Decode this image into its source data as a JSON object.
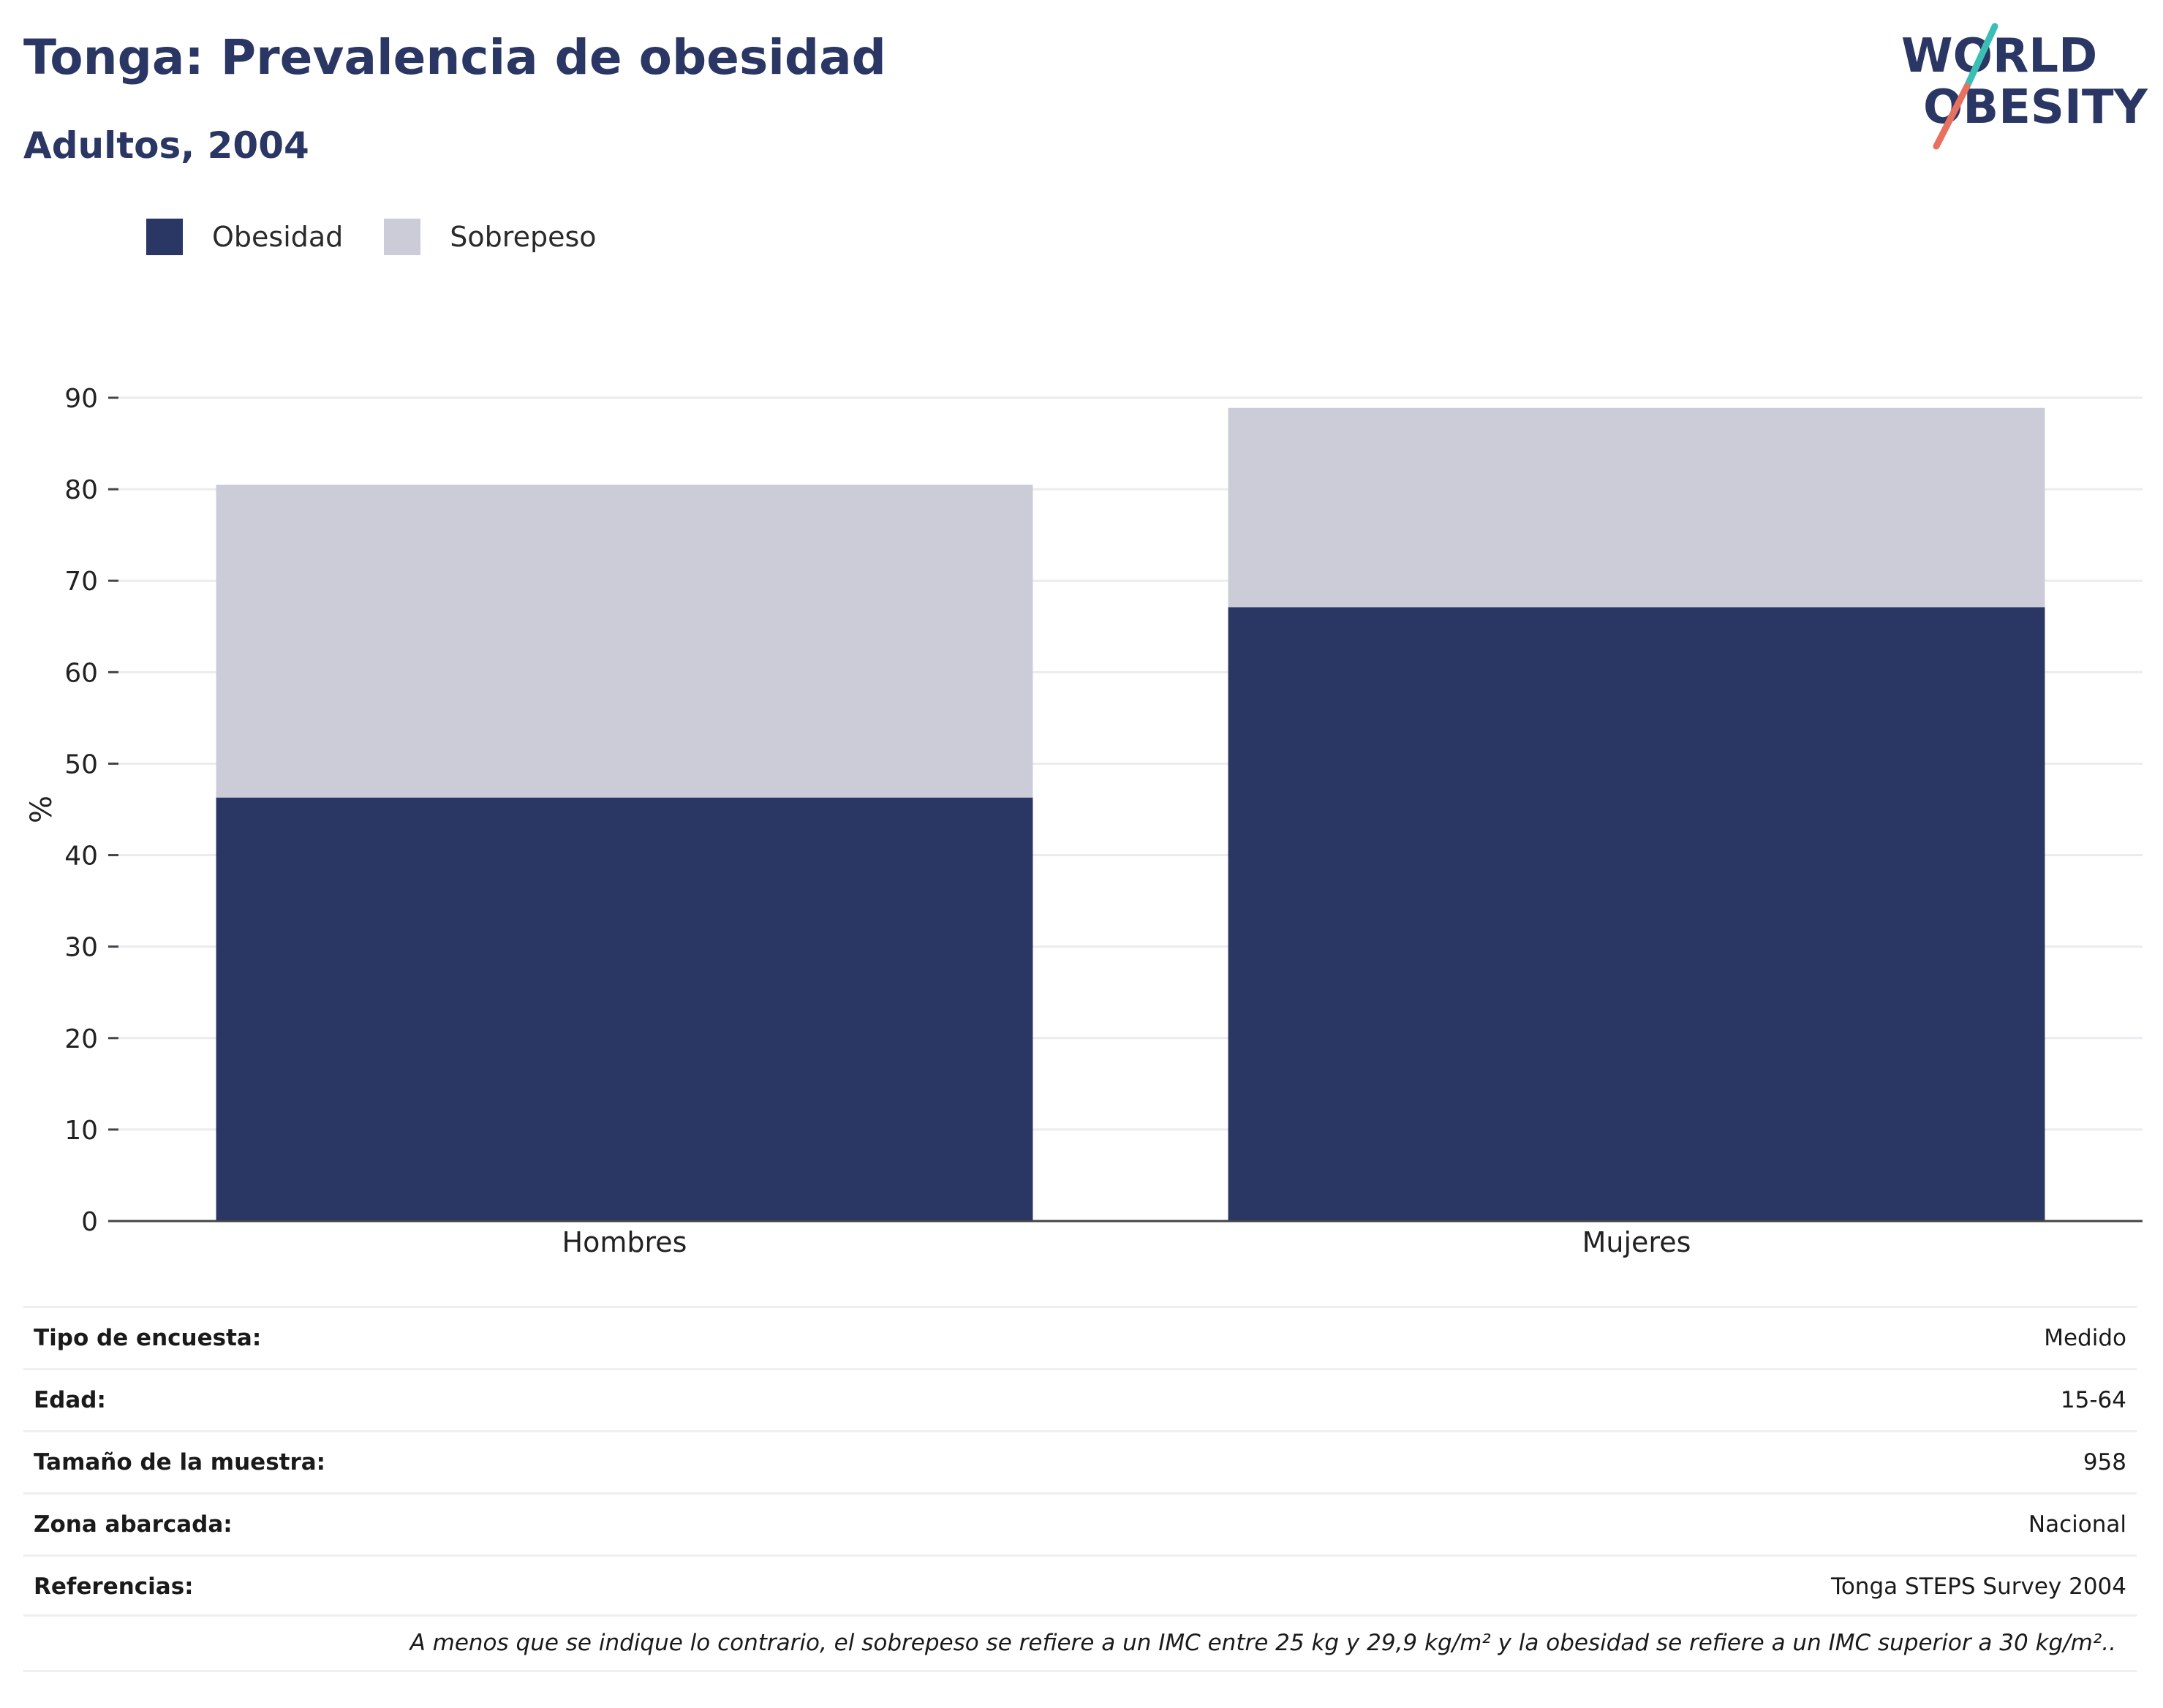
{
  "header": {
    "title": "Tonga: Prevalencia de obesidad",
    "subtitle": "Adultos, 2004"
  },
  "logo": {
    "line1": "WORLD",
    "line2": "OBESITY",
    "colors": {
      "text": "#2a3663",
      "slash_top": "#3bbfb5",
      "slash_bottom": "#e8705f"
    }
  },
  "legend": [
    {
      "label": "Obesidad",
      "color": "#2a3663"
    },
    {
      "label": "Sobrepeso",
      "color": "#cbccd7"
    }
  ],
  "chart_data": {
    "type": "bar",
    "stacked": true,
    "categories": [
      "Hombres",
      "Mujeres"
    ],
    "series": [
      {
        "name": "Obesidad",
        "color": "#2a3663",
        "values": [
          46.3,
          67.1
        ]
      },
      {
        "name": "Sobrepeso",
        "color": "#cbccd7",
        "values": [
          34.2,
          21.8
        ]
      }
    ],
    "ylabel": "%",
    "ylim": [
      0,
      90
    ],
    "yticks": [
      0,
      10,
      20,
      30,
      40,
      50,
      60,
      70,
      80,
      90
    ],
    "grid": true,
    "legend_position": "top-left"
  },
  "info_table": [
    {
      "key": "Tipo de encuesta:",
      "value": "Medido"
    },
    {
      "key": "Edad:",
      "value": "15-64"
    },
    {
      "key": "Tamaño de la muestra:",
      "value": "958"
    },
    {
      "key": "Zona abarcada:",
      "value": "Nacional"
    },
    {
      "key": "Referencias:",
      "value": "Tonga STEPS Survey 2004"
    }
  ],
  "footnote": "A menos que se indique lo contrario, el sobrepeso se refiere a un IMC entre 25 kg y 29,9 kg/m² y la obesidad se refiere a un IMC superior a 30 kg/m².."
}
